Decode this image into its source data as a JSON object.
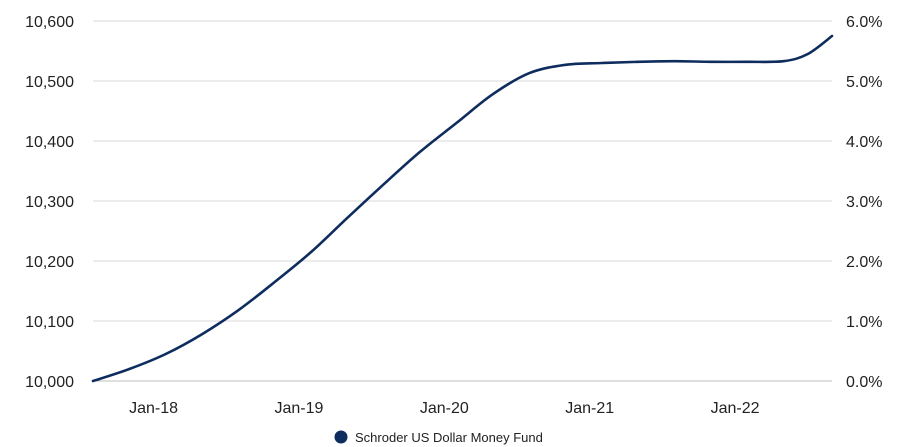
{
  "chart_data": {
    "type": "line",
    "title": "",
    "xlabel": "",
    "ylabel": "",
    "x_ticks": [
      "Jan-18",
      "Jan-19",
      "Jan-20",
      "Jan-21",
      "Jan-22"
    ],
    "x_range": [
      "2017-08",
      "2022-09"
    ],
    "y_ticks": [
      "10,000",
      "10,100",
      "10,200",
      "10,300",
      "10,400",
      "10,500",
      "10,600"
    ],
    "ylim": [
      10000,
      10600
    ],
    "y2_ticks": [
      "0.0%",
      "1.0%",
      "2.0%",
      "3.0%",
      "4.0%",
      "5.0%",
      "6.0%"
    ],
    "y2lim": [
      0,
      6
    ],
    "grid": true,
    "legend_position": "bottom-center",
    "series": [
      {
        "name": "Schroder US Dollar Money Fund",
        "color": "#0e2d5e",
        "points": [
          {
            "x": "2017-08",
            "y": 10000
          },
          {
            "x": "2017-11",
            "y": 10020
          },
          {
            "x": "2018-02",
            "y": 10045
          },
          {
            "x": "2018-05",
            "y": 10078
          },
          {
            "x": "2018-08",
            "y": 10118
          },
          {
            "x": "2018-11",
            "y": 10165
          },
          {
            "x": "2019-02",
            "y": 10215
          },
          {
            "x": "2019-05",
            "y": 10272
          },
          {
            "x": "2019-08",
            "y": 10328
          },
          {
            "x": "2019-11",
            "y": 10382
          },
          {
            "x": "2020-02",
            "y": 10430
          },
          {
            "x": "2020-05",
            "y": 10478
          },
          {
            "x": "2020-08",
            "y": 10513
          },
          {
            "x": "2020-11",
            "y": 10527
          },
          {
            "x": "2021-02",
            "y": 10530
          },
          {
            "x": "2021-05",
            "y": 10532
          },
          {
            "x": "2021-08",
            "y": 10533
          },
          {
            "x": "2021-11",
            "y": 10532
          },
          {
            "x": "2022-02",
            "y": 10532
          },
          {
            "x": "2022-05",
            "y": 10533
          },
          {
            "x": "2022-07",
            "y": 10545
          },
          {
            "x": "2022-09",
            "y": 10575
          }
        ]
      }
    ]
  }
}
